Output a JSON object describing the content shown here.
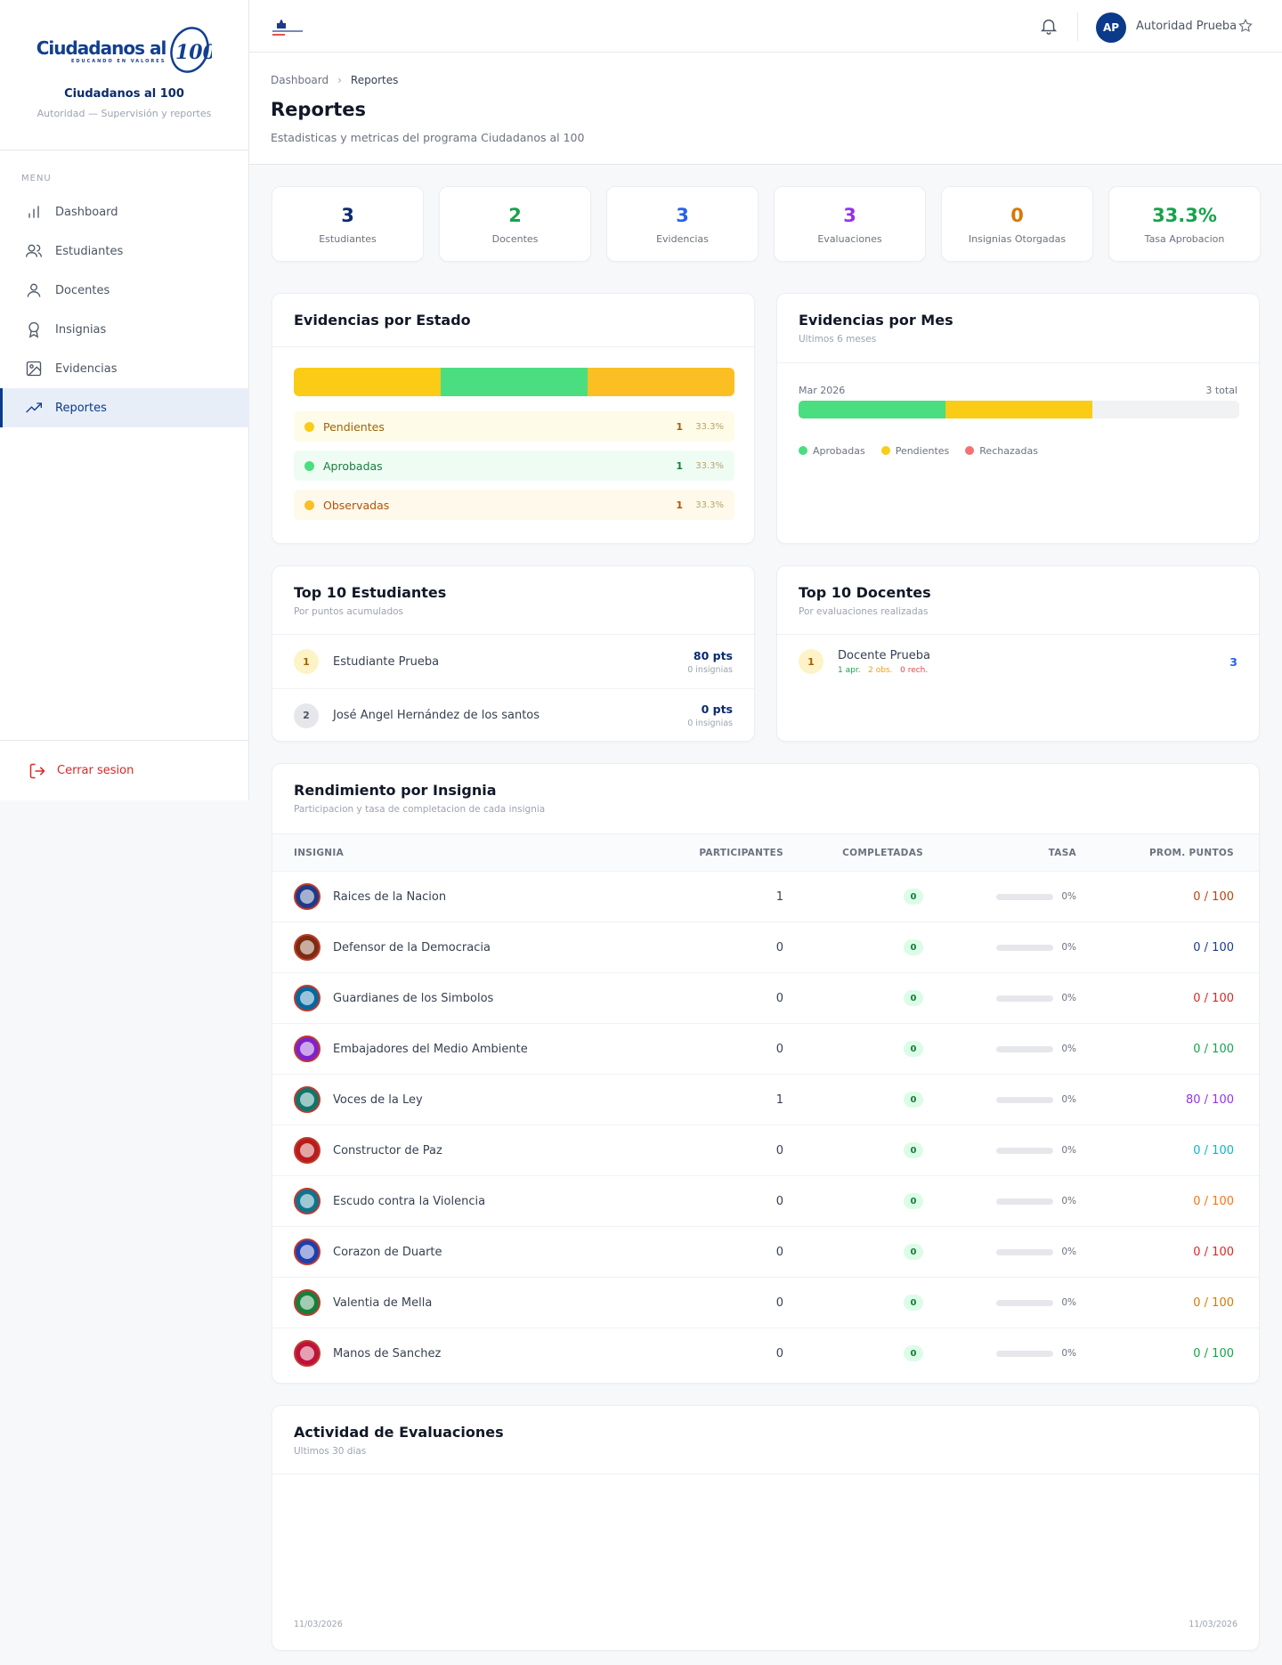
{
  "sidebar": {
    "logo_text": "Ciudadanos al",
    "logo_sub": "EDUCANDO EN VALORES",
    "brand_name": "Ciudadanos al 100",
    "brand_role": "Autoridad — Supervisión y reportes",
    "menu_label": "MENU",
    "items": [
      {
        "label": "Dashboard",
        "icon": "bar-chart-icon"
      },
      {
        "label": "Estudiantes",
        "icon": "users-icon"
      },
      {
        "label": "Docentes",
        "icon": "user-icon"
      },
      {
        "label": "Insignias",
        "icon": "award-icon"
      },
      {
        "label": "Evidencias",
        "icon": "image-icon"
      },
      {
        "label": "Reportes",
        "icon": "trend-up-icon",
        "active": true
      }
    ],
    "logout_label": "Cerrar sesion"
  },
  "topbar": {
    "avatar_initials": "AP",
    "user_name": "Autoridad Prueba"
  },
  "header": {
    "breadcrumb": [
      "Dashboard",
      "Reportes"
    ],
    "title": "Reportes",
    "subtitle": "Estadisticas y metricas del programa Ciudadanos al 100"
  },
  "stats": [
    {
      "value": "3",
      "label": "Estudiantes",
      "color": "#0b2a6e"
    },
    {
      "value": "2",
      "label": "Docentes",
      "color": "#16a34a"
    },
    {
      "value": "3",
      "label": "Evidencias",
      "color": "#2563eb"
    },
    {
      "value": "3",
      "label": "Evaluaciones",
      "color": "#9333ea"
    },
    {
      "value": "0",
      "label": "Insignias Otorgadas",
      "color": "#d97706"
    },
    {
      "value": "33.3%",
      "label": "Tasa Aprobacion",
      "color": "#16a34a"
    }
  ],
  "evid_estado": {
    "title": "Evidencias por Estado",
    "rows": [
      {
        "label": "Pendientes",
        "count": "1",
        "pct": "33.3%",
        "color": "#facc15",
        "bg": "#fefbe8",
        "text": "#a16207",
        "share": 0.333
      },
      {
        "label": "Aprobadas",
        "count": "1",
        "pct": "33.3%",
        "color": "#4ade80",
        "bg": "#effcf3",
        "text": "#15803d",
        "share": 0.333
      },
      {
        "label": "Observadas",
        "count": "1",
        "pct": "33.3%",
        "color": "#fbbf24",
        "bg": "#fef9ea",
        "text": "#b45309",
        "share": 0.334
      }
    ]
  },
  "evid_mes": {
    "title": "Evidencias por Mes",
    "subtitle": "Ultimos 6 meses",
    "month": "Mar 2026",
    "total": "3 total",
    "segments": [
      {
        "color": "#4ade80",
        "share": 0.333
      },
      {
        "color": "#facc15",
        "share": 0.333
      }
    ],
    "legend": [
      {
        "label": "Aprobadas",
        "color": "#4ade80"
      },
      {
        "label": "Pendientes",
        "color": "#facc15"
      },
      {
        "label": "Rechazadas",
        "color": "#f87171"
      }
    ]
  },
  "top_estudiantes": {
    "title": "Top 10 Estudiantes",
    "subtitle": "Por puntos acumulados",
    "rows": [
      {
        "rank": "1",
        "name": "Estudiante Prueba",
        "pts": "80 pts",
        "ins": "0 insignias"
      },
      {
        "rank": "2",
        "name": "José Angel Hernández de los santos",
        "pts": "0 pts",
        "ins": "0 insignias"
      }
    ]
  },
  "top_docentes": {
    "title": "Top 10 Docentes",
    "subtitle": "Por evaluaciones realizadas",
    "rows": [
      {
        "rank": "1",
        "name": "Docente Prueba",
        "apr": "1 apr.",
        "obs": "2 obs.",
        "rech": "0 rech.",
        "total": "3"
      }
    ]
  },
  "insignias": {
    "title": "Rendimiento por Insignia",
    "subtitle": "Participacion y tasa de completacion de cada insignia",
    "columns": [
      "INSIGNIA",
      "PARTICIPANTES",
      "COMPLETADAS",
      "TASA",
      "PROM. PUNTOS"
    ],
    "rows": [
      {
        "name": "Raices de la Nacion",
        "part": "1",
        "comp": "0",
        "tasa": "0%",
        "prom": "0 / 100",
        "color": "#c2410c",
        "icon_bg": "#1e3a8a"
      },
      {
        "name": "Defensor de la Democracia",
        "part": "0",
        "comp": "0",
        "tasa": "0%",
        "prom": "0 / 100",
        "color": "#1e3a8a",
        "icon_bg": "#7c2d12"
      },
      {
        "name": "Guardianes de los Simbolos",
        "part": "0",
        "comp": "0",
        "tasa": "0%",
        "prom": "0 / 100",
        "color": "#dc2626",
        "icon_bg": "#0369a1"
      },
      {
        "name": "Embajadores del Medio Ambiente",
        "part": "0",
        "comp": "0",
        "tasa": "0%",
        "prom": "0 / 100",
        "color": "#16a34a",
        "icon_bg": "#7e22ce"
      },
      {
        "name": "Voces de la Ley",
        "part": "1",
        "comp": "0",
        "tasa": "0%",
        "prom": "80 / 100",
        "color": "#9333ea",
        "icon_bg": "#0f766e"
      },
      {
        "name": "Constructor de Paz",
        "part": "0",
        "comp": "0",
        "tasa": "0%",
        "prom": "0 / 100",
        "color": "#06b6d4",
        "icon_bg": "#b91c1c"
      },
      {
        "name": "Escudo contra la Violencia",
        "part": "0",
        "comp": "0",
        "tasa": "0%",
        "prom": "0 / 100",
        "color": "#f97316",
        "icon_bg": "#0e7490"
      },
      {
        "name": "Corazon de Duarte",
        "part": "0",
        "comp": "0",
        "tasa": "0%",
        "prom": "0 / 100",
        "color": "#dc2626",
        "icon_bg": "#1e40af"
      },
      {
        "name": "Valentia de Mella",
        "part": "0",
        "comp": "0",
        "tasa": "0%",
        "prom": "0 / 100",
        "color": "#d97706",
        "icon_bg": "#15803d"
      },
      {
        "name": "Manos de Sanchez",
        "part": "0",
        "comp": "0",
        "tasa": "0%",
        "prom": "0 / 100",
        "color": "#16a34a",
        "icon_bg": "#be123c"
      }
    ]
  },
  "actividad": {
    "title": "Actividad de Evaluaciones",
    "subtitle": "Ultimos 30 dias",
    "x_start": "11/03/2026",
    "x_end": "11/03/2026"
  }
}
